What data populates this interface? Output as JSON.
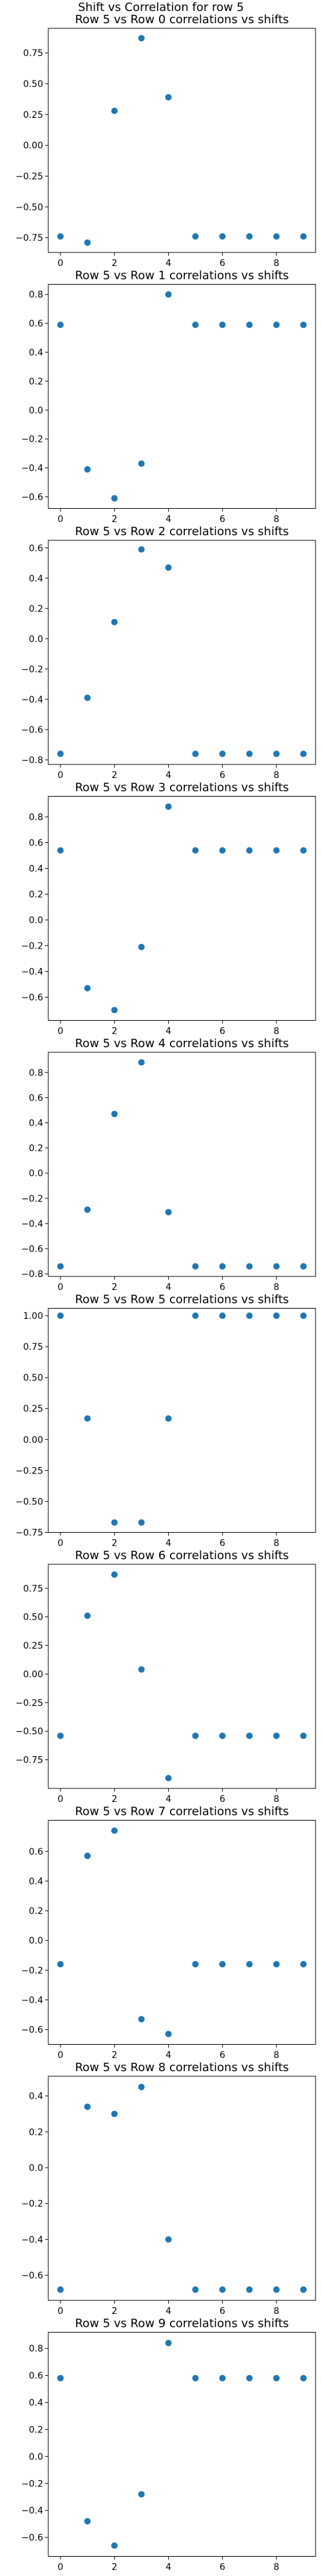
{
  "suptitle": "Shift vs Correlation for row 5",
  "chart_data": [
    {
      "type": "scatter",
      "title": "Row 5 vs Row 0 correlations vs shifts",
      "x": [
        0,
        1,
        2,
        3,
        4,
        5,
        6,
        7,
        8,
        9
      ],
      "y": [
        -0.74,
        -0.79,
        0.28,
        0.87,
        0.39,
        -0.74,
        -0.74,
        -0.74,
        -0.74,
        -0.74
      ],
      "xticks": [
        0,
        2,
        4,
        6,
        8
      ],
      "yticks": [
        -0.75,
        -0.5,
        -0.25,
        0.0,
        0.25,
        0.5,
        0.75
      ],
      "ytick_labels": [
        "−0.75",
        "−0.50",
        "−0.25",
        "0.00",
        "0.25",
        "0.50",
        "0.75"
      ],
      "xlim": [
        -0.45,
        9.45
      ],
      "ylim": [
        -0.87,
        0.95
      ]
    },
    {
      "type": "scatter",
      "title": "Row 5 vs Row 1 correlations vs shifts",
      "x": [
        0,
        1,
        2,
        3,
        4,
        5,
        6,
        7,
        8,
        9
      ],
      "y": [
        0.59,
        -0.41,
        -0.61,
        -0.37,
        0.8,
        0.59,
        0.59,
        0.59,
        0.59,
        0.59
      ],
      "xticks": [
        0,
        2,
        4,
        6,
        8
      ],
      "yticks": [
        -0.6,
        -0.4,
        -0.2,
        0.0,
        0.2,
        0.4,
        0.6,
        0.8
      ],
      "ytick_labels": [
        "−0.6",
        "−0.4",
        "−0.2",
        "0.0",
        "0.2",
        "0.4",
        "0.6",
        "0.8"
      ],
      "xlim": [
        -0.45,
        9.45
      ],
      "ylim": [
        -0.68,
        0.87
      ]
    },
    {
      "type": "scatter",
      "title": "Row 5 vs Row 2 correlations vs shifts",
      "x": [
        0,
        1,
        2,
        3,
        4,
        5,
        6,
        7,
        8,
        9
      ],
      "y": [
        -0.76,
        -0.39,
        0.11,
        0.59,
        0.47,
        -0.76,
        -0.76,
        -0.76,
        -0.76,
        -0.76
      ],
      "xticks": [
        0,
        2,
        4,
        6,
        8
      ],
      "yticks": [
        -0.8,
        -0.6,
        -0.4,
        -0.2,
        0.0,
        0.2,
        0.4,
        0.6
      ],
      "ytick_labels": [
        "−0.8",
        "−0.6",
        "−0.4",
        "−0.2",
        "0.0",
        "0.2",
        "0.4",
        "0.6"
      ],
      "xlim": [
        -0.45,
        9.45
      ],
      "ylim": [
        -0.83,
        0.65
      ]
    },
    {
      "type": "scatter",
      "title": "Row 5 vs Row 3 correlations vs shifts",
      "x": [
        0,
        1,
        2,
        3,
        4,
        5,
        6,
        7,
        8,
        9
      ],
      "y": [
        0.54,
        -0.53,
        -0.7,
        -0.21,
        0.88,
        0.54,
        0.54,
        0.54,
        0.54,
        0.54
      ],
      "xticks": [
        0,
        2,
        4,
        6,
        8
      ],
      "yticks": [
        -0.6,
        -0.4,
        -0.2,
        0.0,
        0.2,
        0.4,
        0.6,
        0.8
      ],
      "ytick_labels": [
        "−0.6",
        "−0.4",
        "−0.2",
        "0.0",
        "0.2",
        "0.4",
        "0.6",
        "0.8"
      ],
      "xlim": [
        -0.45,
        9.45
      ],
      "ylim": [
        -0.78,
        0.96
      ]
    },
    {
      "type": "scatter",
      "title": "Row 5 vs Row 4 correlations vs shifts",
      "x": [
        0,
        1,
        2,
        3,
        4,
        5,
        6,
        7,
        8,
        9
      ],
      "y": [
        -0.74,
        -0.29,
        0.47,
        0.88,
        -0.31,
        -0.74,
        -0.74,
        -0.74,
        -0.74,
        -0.74
      ],
      "xticks": [
        0,
        2,
        4,
        6,
        8
      ],
      "yticks": [
        -0.8,
        -0.6,
        -0.4,
        -0.2,
        0.0,
        0.2,
        0.4,
        0.6,
        0.8
      ],
      "ytick_labels": [
        "−0.8",
        "−0.6",
        "−0.4",
        "−0.2",
        "0.0",
        "0.2",
        "0.4",
        "0.6",
        "0.8"
      ],
      "xlim": [
        -0.45,
        9.45
      ],
      "ylim": [
        -0.82,
        0.96
      ]
    },
    {
      "type": "scatter",
      "title": "Row 5 vs Row 5 correlations vs shifts",
      "x": [
        0,
        1,
        2,
        3,
        4,
        5,
        6,
        7,
        8,
        9
      ],
      "y": [
        1.0,
        0.17,
        -0.67,
        -0.67,
        0.17,
        1.0,
        1.0,
        1.0,
        1.0,
        1.0
      ],
      "xticks": [
        0,
        2,
        4,
        6,
        8
      ],
      "yticks": [
        -0.75,
        -0.5,
        -0.25,
        0.0,
        0.25,
        0.5,
        0.75,
        1.0
      ],
      "ytick_labels": [
        "−0.75",
        "−0.50",
        "−0.25",
        "0.00",
        "0.25",
        "0.50",
        "0.75",
        "1.00"
      ],
      "xlim": [
        -0.45,
        9.45
      ],
      "ylim": [
        -0.75,
        1.06
      ]
    },
    {
      "type": "scatter",
      "title": "Row 5 vs Row 6 correlations vs shifts",
      "x": [
        0,
        1,
        2,
        3,
        4,
        5,
        6,
        7,
        8,
        9
      ],
      "y": [
        -0.54,
        0.51,
        0.87,
        0.04,
        -0.91,
        -0.54,
        -0.54,
        -0.54,
        -0.54,
        -0.54
      ],
      "xticks": [
        0,
        2,
        4,
        6,
        8
      ],
      "yticks": [
        -0.75,
        -0.5,
        -0.25,
        0.0,
        0.25,
        0.5,
        0.75
      ],
      "ytick_labels": [
        "−0.75",
        "−0.50",
        "−0.25",
        "0.00",
        "0.25",
        "0.50",
        "0.75"
      ],
      "xlim": [
        -0.45,
        9.45
      ],
      "ylim": [
        -1.0,
        0.96
      ]
    },
    {
      "type": "scatter",
      "title": "Row 5 vs Row 7 correlations vs shifts",
      "x": [
        0,
        1,
        2,
        3,
        4,
        5,
        6,
        7,
        8,
        9
      ],
      "y": [
        -0.16,
        0.57,
        0.74,
        -0.53,
        -0.63,
        -0.16,
        -0.16,
        -0.16,
        -0.16,
        -0.16
      ],
      "xticks": [
        0,
        2,
        4,
        6,
        8
      ],
      "yticks": [
        -0.6,
        -0.4,
        -0.2,
        0.0,
        0.2,
        0.4,
        0.6
      ],
      "ytick_labels": [
        "−0.6",
        "−0.4",
        "−0.2",
        "0.0",
        "0.2",
        "0.4",
        "0.6"
      ],
      "xlim": [
        -0.45,
        9.45
      ],
      "ylim": [
        -0.7,
        0.81
      ]
    },
    {
      "type": "scatter",
      "title": "Row 5 vs Row 8 correlations vs shifts",
      "x": [
        0,
        1,
        2,
        3,
        4,
        5,
        6,
        7,
        8,
        9
      ],
      "y": [
        -0.68,
        0.34,
        0.3,
        0.45,
        -0.4,
        -0.68,
        -0.68,
        -0.68,
        -0.68,
        -0.68
      ],
      "xticks": [
        0,
        2,
        4,
        6,
        8
      ],
      "yticks": [
        -0.6,
        -0.4,
        -0.2,
        0.0,
        0.2,
        0.4
      ],
      "ytick_labels": [
        "−0.6",
        "−0.4",
        "−0.2",
        "0.0",
        "0.2",
        "0.4"
      ],
      "xlim": [
        -0.45,
        9.45
      ],
      "ylim": [
        -0.74,
        0.51
      ]
    },
    {
      "type": "scatter",
      "title": "Row 5 vs Row 9 correlations vs shifts",
      "x": [
        0,
        1,
        2,
        3,
        4,
        5,
        6,
        7,
        8,
        9
      ],
      "y": [
        0.58,
        -0.48,
        -0.66,
        -0.28,
        0.84,
        0.58,
        0.58,
        0.58,
        0.58,
        0.58
      ],
      "xticks": [
        0,
        2,
        4,
        6,
        8
      ],
      "yticks": [
        -0.6,
        -0.4,
        -0.2,
        0.0,
        0.2,
        0.4,
        0.6,
        0.8
      ],
      "ytick_labels": [
        "−0.6",
        "−0.4",
        "−0.2",
        "0.0",
        "0.2",
        "0.4",
        "0.6",
        "0.8"
      ],
      "xlim": [
        -0.45,
        9.45
      ],
      "ylim": [
        -0.74,
        0.92
      ]
    }
  ],
  "colors": {
    "marker": "#1f77b4",
    "axes": "#000000"
  }
}
